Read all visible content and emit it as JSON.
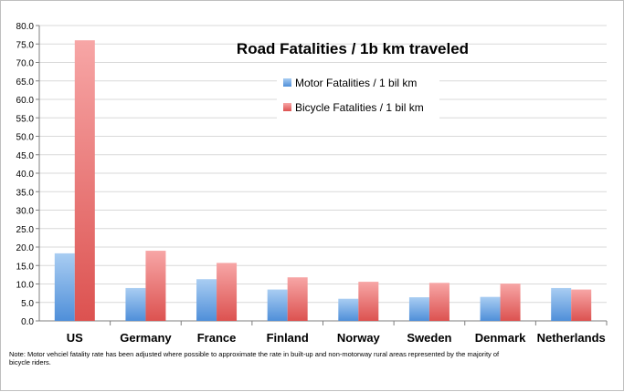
{
  "chart_data": {
    "type": "bar",
    "title": "Road Fatalities / 1b km traveled",
    "categories": [
      "US",
      "Germany",
      "France",
      "Finland",
      "Norway",
      "Sweden",
      "Denmark",
      "Netherlands"
    ],
    "series": [
      {
        "name": "Motor Fatalities / 1 bil km",
        "values": [
          18.3,
          8.9,
          11.3,
          8.5,
          6.0,
          6.4,
          6.5,
          8.9
        ],
        "color": "#5b9bd5"
      },
      {
        "name": "Bicycle Fatalities / 1 bil km",
        "values": [
          76.0,
          19.0,
          15.7,
          11.8,
          10.6,
          10.3,
          10.1,
          8.5
        ],
        "color": "#e8615e"
      }
    ],
    "ylim": [
      0,
      80
    ],
    "ytick_step": 5,
    "ytick_labels": [
      "0.0",
      "5.0",
      "10.0",
      "15.0",
      "20.0",
      "25.0",
      "30.0",
      "35.0",
      "40.0",
      "45.0",
      "50.0",
      "55.0",
      "60.0",
      "65.0",
      "70.0",
      "75.0",
      "80.0"
    ],
    "grid": true,
    "legend_position": "top-right",
    "xlabel": "",
    "ylabel": "",
    "note": "Note: Motor vehciel fatality rate has been adjusted where possible to approximate the rate in built-up and non-motorway rural areas represented by the majority of bicycle riders."
  }
}
